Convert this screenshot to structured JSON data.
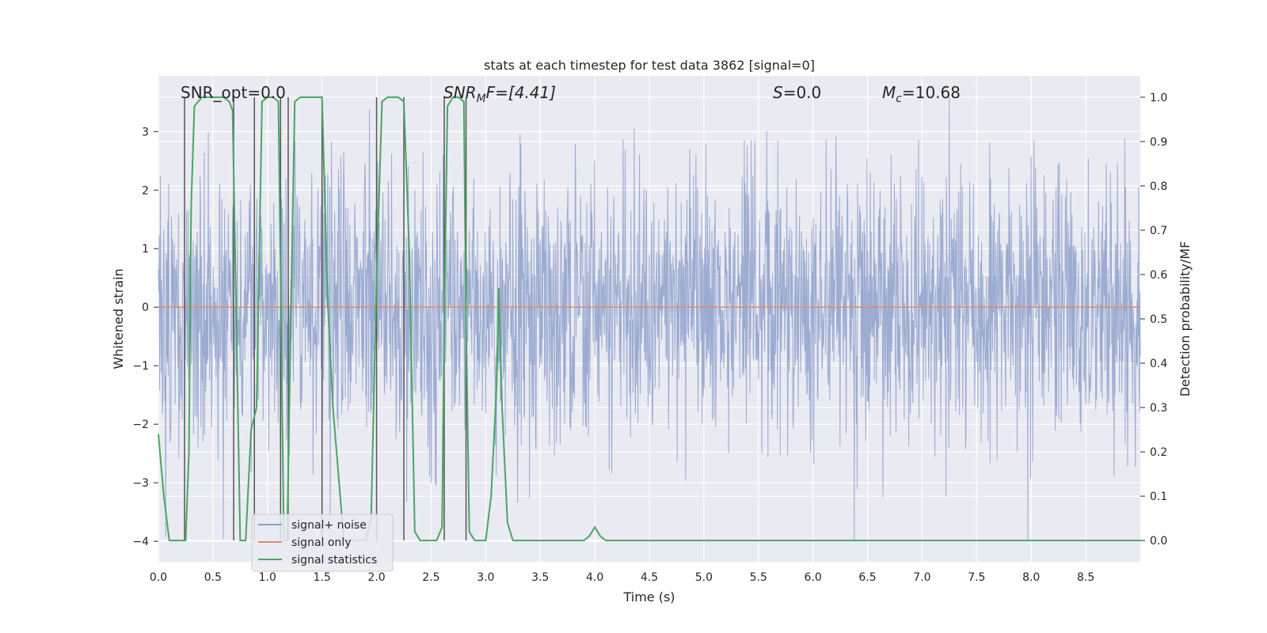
{
  "chart_data": {
    "type": "line",
    "title": "stats at each timestep for test data 3862 [signal=0]",
    "xlabel": "Time (s)",
    "ylabel_left": "Whitened strain",
    "ylabel_right": "Detection probability/MF",
    "xlim": [
      0,
      9
    ],
    "ylim_left": [
      -4.35,
      3.95
    ],
    "ylim_right": [
      -0.048,
      1.048
    ],
    "grid": true,
    "legend_position": "lower-left",
    "x_ticks": [
      "0.0",
      "0.5",
      "1.0",
      "1.5",
      "2.0",
      "2.5",
      "3.0",
      "3.5",
      "4.0",
      "4.5",
      "5.0",
      "5.5",
      "6.0",
      "6.5",
      "7.0",
      "7.5",
      "8.0",
      "8.5"
    ],
    "x_tick_values": [
      0,
      0.5,
      1.0,
      1.5,
      2.0,
      2.5,
      3.0,
      3.5,
      4.0,
      4.5,
      5.0,
      5.5,
      6.0,
      6.5,
      7.0,
      7.5,
      8.0,
      8.5
    ],
    "y_left_ticks": [
      "3",
      "2",
      "1",
      "0",
      "−1",
      "−2",
      "−3",
      "−4"
    ],
    "y_left_tick_values": [
      3,
      2,
      1,
      0,
      -1,
      -2,
      -3,
      -4
    ],
    "y_right_ticks": [
      "1.0",
      "0.9",
      "0.8",
      "0.7",
      "0.6",
      "0.5",
      "0.4",
      "0.3",
      "0.2",
      "0.1",
      "0.0"
    ],
    "y_right_tick_values": [
      1.0,
      0.9,
      0.8,
      0.7,
      0.6,
      0.5,
      0.4,
      0.3,
      0.2,
      0.1,
      0.0
    ],
    "annotations": {
      "snr_opt": "SNR_opt=0.0",
      "snr_mf_main": "SNR",
      "snr_mf_sub": "M",
      "snr_mf_rest": "F=[4.41]",
      "s_main": "S",
      "s_rest": "=0.0",
      "mc_main": "M",
      "mc_sub": "c",
      "mc_rest": "=10.68"
    },
    "series": [
      {
        "name": "signal+ noise",
        "color": "#8da0cb",
        "axis": "left",
        "description": "whitened strain noise, amplitude roughly between -4 and 3.6",
        "envelope": {
          "upper_typical": 1.8,
          "lower_typical": -1.8,
          "upper_peak": 3.6,
          "lower_peak": -4.0
        }
      },
      {
        "name": "signal only",
        "color": "#e08c6e",
        "axis": "left",
        "x": [
          0,
          9
        ],
        "y": [
          0,
          0
        ]
      },
      {
        "name": "signal statistics",
        "color": "#4aa564",
        "axis": "right",
        "x": [
          0.0,
          0.05,
          0.1,
          0.25,
          0.28,
          0.3,
          0.33,
          0.4,
          0.5,
          0.6,
          0.65,
          0.68,
          0.7,
          0.75,
          0.8,
          0.82,
          0.85,
          0.9,
          0.95,
          1.0,
          1.05,
          1.1,
          1.12,
          1.15,
          1.18,
          1.2,
          1.25,
          1.3,
          1.4,
          1.5,
          1.55,
          1.6,
          1.7,
          1.8,
          1.9,
          1.95,
          2.0,
          2.05,
          2.1,
          2.15,
          2.2,
          2.25,
          2.3,
          2.35,
          2.4,
          2.5,
          2.55,
          2.6,
          2.62,
          2.65,
          2.7,
          2.75,
          2.8,
          2.82,
          2.85,
          2.9,
          2.95,
          3.0,
          3.05,
          3.1,
          3.12,
          3.15,
          3.2,
          3.25,
          3.3,
          3.5,
          3.7,
          3.9,
          3.95,
          4.0,
          4.05,
          4.1,
          4.5,
          5.0,
          6.0,
          7.0,
          8.0,
          9.0
        ],
        "y": [
          0.24,
          0.1,
          0.0,
          0.0,
          0.2,
          0.75,
          0.98,
          1.0,
          1.0,
          1.0,
          0.99,
          0.97,
          0.7,
          0.0,
          0.0,
          0.1,
          0.25,
          0.3,
          0.99,
          1.0,
          1.0,
          0.99,
          0.6,
          0.0,
          0.0,
          0.3,
          0.99,
          1.0,
          1.0,
          1.0,
          0.55,
          0.3,
          0.0,
          0.0,
          0.0,
          0.05,
          0.6,
          0.99,
          1.0,
          1.0,
          1.0,
          0.99,
          0.65,
          0.02,
          0.0,
          0.0,
          0.0,
          0.03,
          0.5,
          0.98,
          1.0,
          1.0,
          0.99,
          0.5,
          0.02,
          0.0,
          0.0,
          0.0,
          0.1,
          0.35,
          0.57,
          0.3,
          0.04,
          0.0,
          0.0,
          0.0,
          0.0,
          0.0,
          0.01,
          0.03,
          0.01,
          0.0,
          0.0,
          0.0,
          0.0,
          0.0,
          0.0,
          0.0
        ]
      }
    ],
    "markers": {
      "color": "#555555",
      "axis": "right",
      "x": [
        0.24,
        0.69,
        0.88,
        1.12,
        1.19,
        1.5,
        2.0,
        2.25,
        2.62,
        2.82
      ]
    }
  },
  "legend": {
    "items": [
      "signal+ noise",
      "signal only",
      "signal statistics"
    ]
  }
}
